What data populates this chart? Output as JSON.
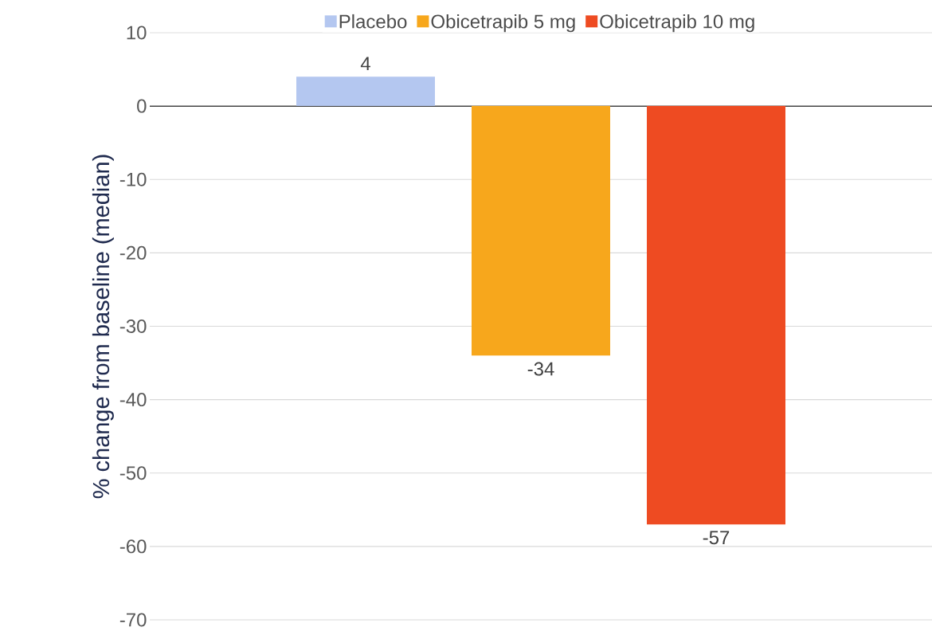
{
  "chart_data": {
    "type": "bar",
    "ylabel": "% change from baseline (median)",
    "categories": [
      null
    ],
    "series": [
      {
        "name": "Placebo",
        "color": "#b4c7f0",
        "values": [
          4
        ]
      },
      {
        "name": "Obicetrapib 5 mg",
        "color": "#f7a71c",
        "values": [
          -34
        ]
      },
      {
        "name": "Obicetrapib 10 mg",
        "color": "#ee4b22",
        "values": [
          -57
        ]
      }
    ],
    "ylim": [
      -70,
      10
    ],
    "yticks": [
      -70,
      -60,
      -50,
      -40,
      -30,
      -20,
      -10,
      0,
      10
    ],
    "grid": "y",
    "legend": "top",
    "data_labels": true
  }
}
